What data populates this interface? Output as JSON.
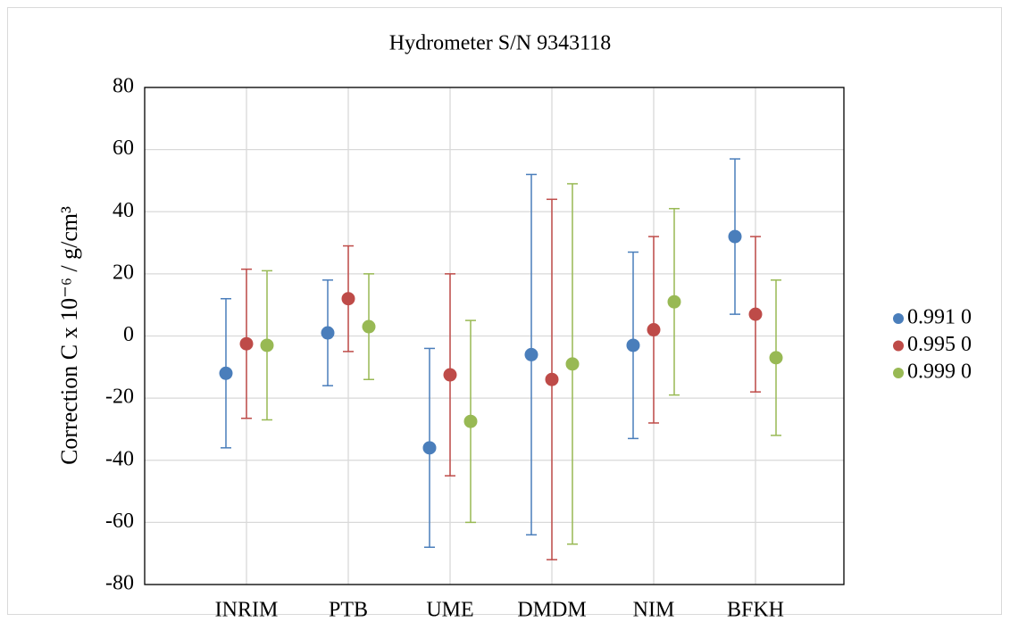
{
  "chart_data": {
    "type": "errorbar",
    "title": "Hydrometer S/N 9343118",
    "y_label": "Correction C x 10⁻⁶ / g/cm³",
    "categories": [
      "INRIM",
      "PTB",
      "UME",
      "DMDM",
      "NIM",
      "BFKH"
    ],
    "series": [
      {
        "name": "0.991 0",
        "color": "#4a7ebb",
        "values": [
          -12,
          1,
          -36,
          -6,
          -3,
          32
        ],
        "errors": [
          24,
          17,
          32,
          58,
          30,
          25
        ]
      },
      {
        "name": "0.995 0",
        "color": "#be4b48",
        "values": [
          -2.5,
          12,
          -12.5,
          -14,
          2,
          7
        ],
        "errors": [
          24,
          17,
          32.5,
          58,
          30,
          25
        ]
      },
      {
        "name": "0.999 0",
        "color": "#98b954",
        "values": [
          -3,
          3,
          -27.5,
          -9,
          11,
          -7
        ],
        "errors": [
          24,
          17,
          32.5,
          58,
          30,
          25
        ]
      }
    ],
    "ylim": [
      -80,
      80
    ],
    "yticks": [
      -80,
      -60,
      -40,
      -20,
      0,
      20,
      40,
      60,
      80
    ],
    "grid": true,
    "legend": "right"
  }
}
